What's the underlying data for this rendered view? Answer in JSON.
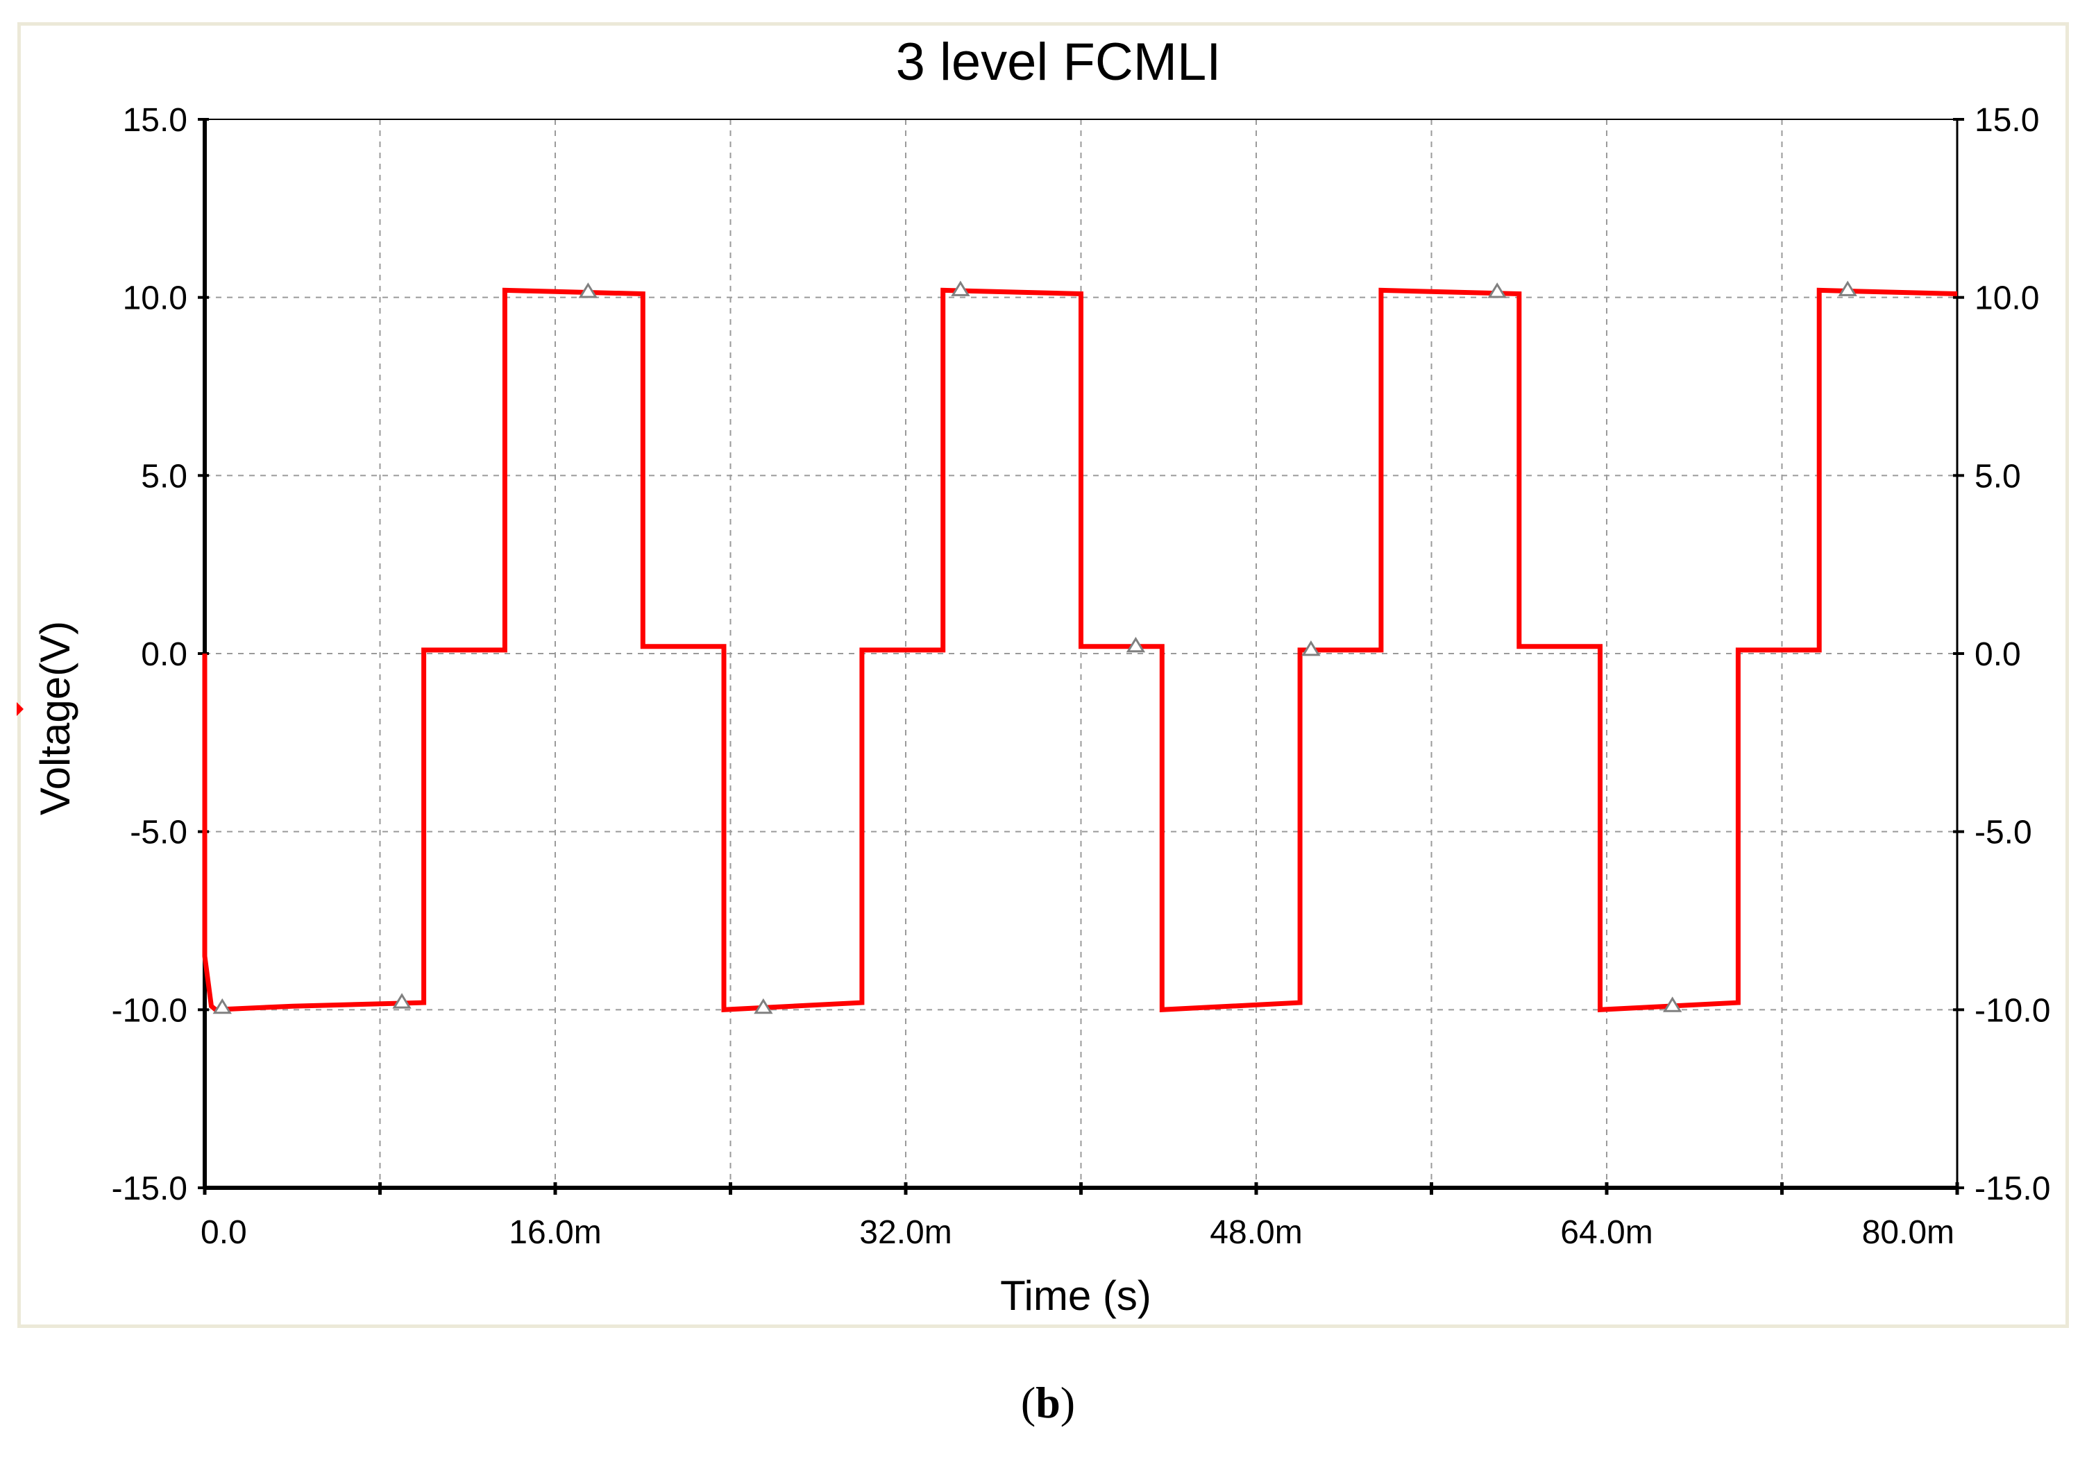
{
  "figure": {
    "panel_label_prefix": "(",
    "panel_label_letter": "b",
    "panel_label_suffix": ")"
  },
  "chart_data": {
    "type": "line",
    "title": "3 level FCMLI",
    "xlabel": "Time (s)",
    "ylabel": "Voltage(V)",
    "xlim": [
      0,
      80
    ],
    "ylim": [
      -15,
      15
    ],
    "x_unit_note": "ms",
    "x_ticks": [
      0,
      16,
      32,
      48,
      64,
      80
    ],
    "x_tick_labels": [
      "0.0",
      "16.0m",
      "32.0m",
      "48.0m",
      "64.0m",
      "80.0m"
    ],
    "y_ticks": [
      15,
      10,
      5,
      0,
      -5,
      -10,
      -15
    ],
    "y_tick_labels": [
      "15.0",
      "10.0",
      "5.0",
      "0.0",
      "-5.0",
      "-10.0",
      "-15.0"
    ],
    "right_axis_labels": true,
    "grid": true,
    "grid_style": "dashed",
    "legend": false,
    "colors": {
      "series": "#ff0000",
      "grid": "#9a9a9a",
      "axis": "#000000",
      "marker": "#808080"
    },
    "series": [
      {
        "x": [
          0,
          0,
          0.3,
          0.5,
          4,
          10,
          10,
          13.7,
          13.7,
          20,
          20,
          23.7,
          23.7,
          30,
          30,
          33.7,
          33.7,
          40,
          40,
          43.7,
          43.7,
          50,
          50,
          53.7,
          53.7,
          60,
          60,
          63.7,
          63.7,
          70,
          70,
          73.7,
          73.7,
          80
        ],
        "y": [
          0,
          -8.5,
          -9.9,
          -10,
          -9.9,
          -9.8,
          0.1,
          0.1,
          10.2,
          10.1,
          0.2,
          0.2,
          -10,
          -9.8,
          0.1,
          0.1,
          10.2,
          10.1,
          0.2,
          0.2,
          -10,
          -9.8,
          0.1,
          0.1,
          10.2,
          10.1,
          0.2,
          0.2,
          -10,
          -9.8,
          0.1,
          0.1,
          10.2,
          10.1
        ]
      }
    ],
    "markers": {
      "x": [
        0.8,
        9,
        17.5,
        25.5,
        34.5,
        42.5,
        50.5,
        59,
        67,
        75
      ],
      "y": [
        -9.95,
        -9.8,
        10.15,
        -9.95,
        10.2,
        0.2,
        0.1,
        10.15,
        -9.9,
        10.2
      ]
    }
  }
}
